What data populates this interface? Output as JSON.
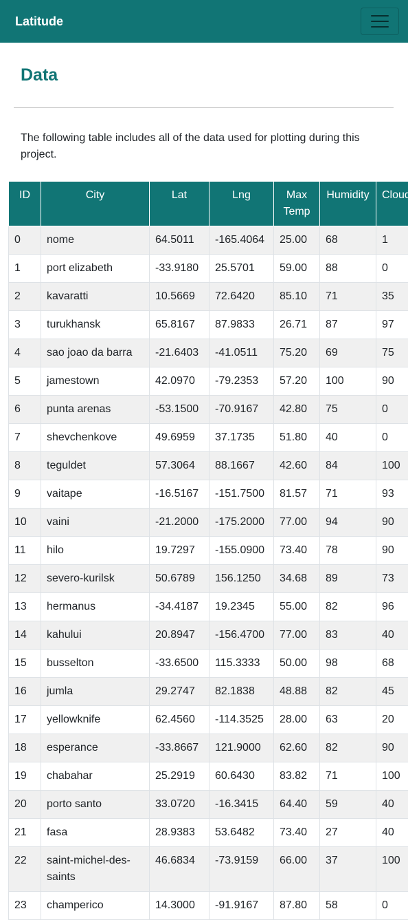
{
  "navbar": {
    "brand": "Latitude",
    "toggle_icon": "hamburger-menu-icon"
  },
  "page": {
    "title": "Data",
    "intro": "The following table includes all of the data used for plotting during this project."
  },
  "colors": {
    "accent": "#117575",
    "stripe": "#f0f0f0"
  },
  "table": {
    "headers": [
      "ID",
      "City",
      "Lat",
      "Lng",
      "Max Temp",
      "Humidity",
      "Cloud"
    ],
    "rows": [
      [
        "0",
        "nome",
        "64.5011",
        "-165.4064",
        "25.00",
        "68",
        "1"
      ],
      [
        "1",
        "port elizabeth",
        "-33.9180",
        "25.5701",
        "59.00",
        "88",
        "0"
      ],
      [
        "2",
        "kavaratti",
        "10.5669",
        "72.6420",
        "85.10",
        "71",
        "35"
      ],
      [
        "3",
        "turukhansk",
        "65.8167",
        "87.9833",
        "26.71",
        "87",
        "97"
      ],
      [
        "4",
        "sao joao da barra",
        "-21.6403",
        "-41.0511",
        "75.20",
        "69",
        "75"
      ],
      [
        "5",
        "jamestown",
        "42.0970",
        "-79.2353",
        "57.20",
        "100",
        "90"
      ],
      [
        "6",
        "punta arenas",
        "-53.1500",
        "-70.9167",
        "42.80",
        "75",
        "0"
      ],
      [
        "7",
        "shevchenkove",
        "49.6959",
        "37.1735",
        "51.80",
        "40",
        "0"
      ],
      [
        "8",
        "teguldet",
        "57.3064",
        "88.1667",
        "42.60",
        "84",
        "100"
      ],
      [
        "9",
        "vaitape",
        "-16.5167",
        "-151.7500",
        "81.57",
        "71",
        "93"
      ],
      [
        "10",
        "vaini",
        "-21.2000",
        "-175.2000",
        "77.00",
        "94",
        "90"
      ],
      [
        "11",
        "hilo",
        "19.7297",
        "-155.0900",
        "73.40",
        "78",
        "90"
      ],
      [
        "12",
        "severo-kurilsk",
        "50.6789",
        "156.1250",
        "34.68",
        "89",
        "73"
      ],
      [
        "13",
        "hermanus",
        "-34.4187",
        "19.2345",
        "55.00",
        "82",
        "96"
      ],
      [
        "14",
        "kahului",
        "20.8947",
        "-156.4700",
        "77.00",
        "83",
        "40"
      ],
      [
        "15",
        "busselton",
        "-33.6500",
        "115.3333",
        "50.00",
        "98",
        "68"
      ],
      [
        "16",
        "jumla",
        "29.2747",
        "82.1838",
        "48.88",
        "82",
        "45"
      ],
      [
        "17",
        "yellowknife",
        "62.4560",
        "-114.3525",
        "28.00",
        "63",
        "20"
      ],
      [
        "18",
        "esperance",
        "-33.8667",
        "121.9000",
        "62.60",
        "82",
        "90"
      ],
      [
        "19",
        "chabahar",
        "25.2919",
        "60.6430",
        "83.82",
        "71",
        "100"
      ],
      [
        "20",
        "porto santo",
        "33.0720",
        "-16.3415",
        "64.40",
        "59",
        "40"
      ],
      [
        "21",
        "fasa",
        "28.9383",
        "53.6482",
        "73.40",
        "27",
        "40"
      ],
      [
        "22",
        "saint-michel-des-saints",
        "46.6834",
        "-73.9159",
        "66.00",
        "37",
        "100"
      ],
      [
        "23",
        "champerico",
        "14.3000",
        "-91.9167",
        "87.80",
        "58",
        "0"
      ]
    ]
  }
}
